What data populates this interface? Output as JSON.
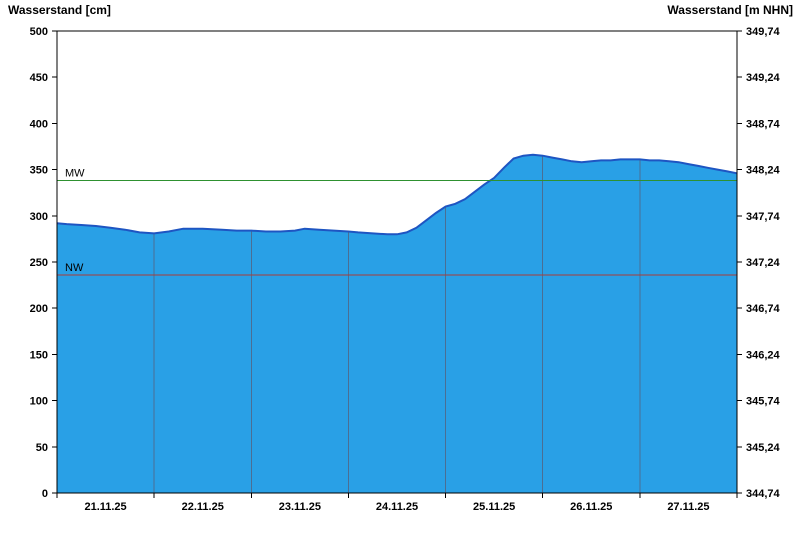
{
  "colors": {
    "background": "#ffffff",
    "area_fill": "#29a0e6",
    "area_line": "#1e55c2",
    "day_grid": "#4a6e94",
    "mw_line": "#2e9130",
    "nw_line": "#a93c38",
    "frame": "#000000",
    "tick_text": "#000000"
  },
  "chart_data": {
    "type": "area",
    "title": "",
    "x_axis": {
      "unit": "days",
      "range": [
        0,
        7
      ],
      "tick_labels": [
        "21.11.25",
        "22.11.25",
        "23.11.25",
        "24.11.25",
        "25.11.25",
        "26.11.25",
        "27.11.25"
      ]
    },
    "y_left": {
      "label": "Wasserstand [cm]",
      "min": 0,
      "max": 500,
      "ticks": [
        0,
        50,
        100,
        150,
        200,
        250,
        300,
        350,
        400,
        450,
        500
      ]
    },
    "y_right": {
      "label": "Wasserstand [m NHN]",
      "tick_labels": [
        "344,74",
        "345,24",
        "345,74",
        "346,24",
        "346,74",
        "347,24",
        "347,74",
        "348,24",
        "348,74",
        "349,24",
        "349,74"
      ]
    },
    "reference_lines": [
      {
        "label": "MW",
        "value_cm": 338
      },
      {
        "label": "NW",
        "value_cm": 236
      }
    ],
    "series": [
      {
        "name": "Wasserstand",
        "x_days": [
          0,
          0.1,
          0.25,
          0.4,
          0.55,
          0.7,
          0.85,
          1,
          1.15,
          1.3,
          1.5,
          1.7,
          1.85,
          2,
          2.15,
          2.3,
          2.45,
          2.55,
          2.7,
          2.85,
          3,
          3.1,
          3.25,
          3.4,
          3.5,
          3.6,
          3.7,
          3.8,
          3.9,
          4,
          4.1,
          4.2,
          4.3,
          4.4,
          4.5,
          4.6,
          4.7,
          4.8,
          4.9,
          5,
          5.1,
          5.2,
          5.3,
          5.4,
          5.5,
          5.6,
          5.7,
          5.8,
          5.9,
          6,
          6.1,
          6.2,
          6.3,
          6.4,
          6.5,
          6.6,
          6.7,
          6.8,
          6.9,
          7
        ],
        "y_cm": [
          292,
          291,
          290,
          289,
          287,
          285,
          282,
          281,
          283,
          286,
          286,
          285,
          284,
          284,
          283,
          283,
          284,
          286,
          285,
          284,
          283,
          282,
          281,
          280,
          280,
          282,
          287,
          295,
          303,
          310,
          313,
          318,
          326,
          334,
          341,
          352,
          362,
          365,
          366,
          365,
          363,
          361,
          359,
          358,
          359,
          360,
          360,
          361,
          361,
          361,
          360,
          360,
          359,
          358,
          356,
          354,
          352,
          350,
          348,
          346
        ]
      }
    ]
  }
}
